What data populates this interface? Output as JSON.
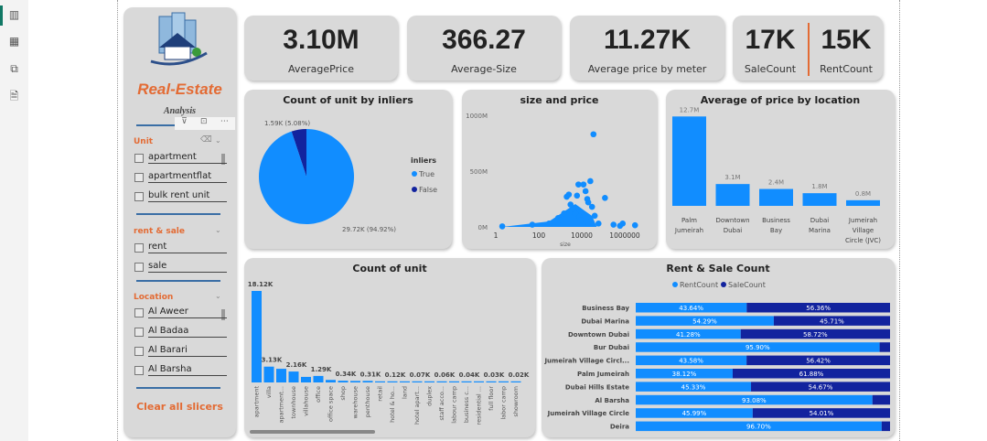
{
  "rail": {
    "icons": [
      "report-view-icon",
      "table-view-icon",
      "model-view-icon",
      "dax-query-icon"
    ]
  },
  "slicer": {
    "logo_title": "Real-Estate",
    "logo_subtitle": "Analysis",
    "unit": {
      "title": "Unit",
      "items": [
        "apartment",
        "apartmentflat",
        "bulk rent unit"
      ]
    },
    "rent_sale": {
      "title": "rent & sale",
      "items": [
        "rent",
        "sale"
      ]
    },
    "location": {
      "title": "Location",
      "items": [
        "Al Aweer",
        "Al Badaa",
        "Al Barari",
        "Al Barsha"
      ]
    },
    "clear_label": "Clear all slicers"
  },
  "kpis": [
    {
      "value": "3.10M",
      "label": "AveragePrice"
    },
    {
      "value": "366.27",
      "label": "Average-Size"
    },
    {
      "value": "11.27K",
      "label": "Average price by meter"
    },
    {
      "value": "17K",
      "label": "SaleCount"
    },
    {
      "value": "15K",
      "label": "RentCount"
    }
  ],
  "colors": {
    "light_blue": "#118dff",
    "dark_blue": "#12239e",
    "orange": "#e36b34",
    "card": "#d9d9d9"
  },
  "chart_data": [
    {
      "type": "pie",
      "title": "Count of unit by inliers",
      "legend_title": "inliers",
      "legend_position": "right",
      "slices": [
        {
          "name": "True",
          "value": 29.72,
          "label": "29.72K (94.92%)",
          "color": "#118dff"
        },
        {
          "name": "False",
          "value": 1.59,
          "label": "1.59K (5.08%)",
          "color": "#12239e"
        }
      ]
    },
    {
      "type": "scatter",
      "title": "size and price",
      "xlabel": "size",
      "xscale": "log",
      "xticks": [
        "1",
        "100",
        "10000",
        "1000000"
      ],
      "yticks": [
        "0M",
        "500M",
        "1000M"
      ],
      "ylim": [
        0,
        1000
      ],
      "points": [
        [
          2,
          5
        ],
        [
          50,
          20
        ],
        [
          300,
          30
        ],
        [
          800,
          80
        ],
        [
          1000,
          60
        ],
        [
          1500,
          120
        ],
        [
          2000,
          270
        ],
        [
          2500,
          290
        ],
        [
          3000,
          200
        ],
        [
          4000,
          160
        ],
        [
          5000,
          120
        ],
        [
          6000,
          280
        ],
        [
          7000,
          380
        ],
        [
          8000,
          90
        ],
        [
          9000,
          60
        ],
        [
          12000,
          380
        ],
        [
          15000,
          320
        ],
        [
          18000,
          250
        ],
        [
          20000,
          220
        ],
        [
          25000,
          410
        ],
        [
          30000,
          180
        ],
        [
          35000,
          830
        ],
        [
          40000,
          100
        ],
        [
          60000,
          30
        ],
        [
          120000,
          260
        ],
        [
          300000,
          20
        ],
        [
          600000,
          10
        ],
        [
          800000,
          30
        ],
        [
          3000000,
          15
        ],
        [
          20000,
          40
        ]
      ]
    },
    {
      "type": "bar",
      "title": "Average of price by location",
      "categories": [
        "Palm Jumeirah",
        "Downtown Dubai",
        "Business Bay",
        "Dubai Marina",
        "Jumeirah Village Circle (JVC)"
      ],
      "values": [
        12.7,
        3.1,
        2.4,
        1.8,
        0.8
      ],
      "labels": [
        "12.7M",
        "3.1M",
        "2.4M",
        "1.8M",
        "0.8M"
      ]
    },
    {
      "type": "bar",
      "title": "Count of unit",
      "categories": [
        "apartment",
        "villa",
        "apartment...",
        "townhouse",
        "villahouse",
        "office",
        "office space",
        "shop",
        "warehouse",
        "penthouse",
        "retail",
        "hotel & ho...",
        "land",
        "hotel apart...",
        "duplex",
        "staff acco...",
        "labour camp",
        "business c...",
        "residential ...",
        "full floor",
        "labor camp",
        "showroom"
      ],
      "values": [
        18.12,
        3.13,
        2.7,
        2.16,
        1.1,
        1.29,
        0.5,
        0.34,
        0.3,
        0.31,
        0.15,
        0.12,
        0.1,
        0.07,
        0.07,
        0.06,
        0.05,
        0.04,
        0.04,
        0.03,
        0.02,
        0.02
      ],
      "labels": [
        "18.12K",
        "3.13K",
        "",
        "2.16K",
        "",
        "1.29K",
        "",
        "0.34K",
        "",
        "0.31K",
        "",
        "0.12K",
        "",
        "0.07K",
        "",
        "0.06K",
        "",
        "0.04K",
        "",
        "0.03K",
        "",
        "0.02K"
      ]
    },
    {
      "type": "bar",
      "stacked": "100%",
      "title": "Rent & Sale Count",
      "legend_position": "top",
      "series": [
        {
          "name": "RentCount",
          "color": "#118dff"
        },
        {
          "name": "SaleCount",
          "color": "#12239e"
        }
      ],
      "categories": [
        "Business Bay",
        "Dubai Marina",
        "Downtown Dubai",
        "Bur Dubai",
        "Jumeirah Village Circl...",
        "Palm Jumeirah",
        "Dubai Hills Estate",
        "Al Barsha",
        "Jumeirah Village Circle",
        "Deira"
      ],
      "rent_pct": [
        43.64,
        54.29,
        41.28,
        95.9,
        43.58,
        38.12,
        45.33,
        93.08,
        45.99,
        96.7
      ],
      "rent_labels": [
        "43.64%",
        "54.29%",
        "41.28%",
        "95.90%",
        "43.58%",
        "38.12%",
        "45.33%",
        "93.08%",
        "45.99%",
        "96.70%"
      ],
      "sale_labels": [
        "56.36%",
        "45.71%",
        "58.72%",
        "",
        "56.42%",
        "61.88%",
        "54.67%",
        "",
        "54.01%",
        ""
      ]
    }
  ]
}
